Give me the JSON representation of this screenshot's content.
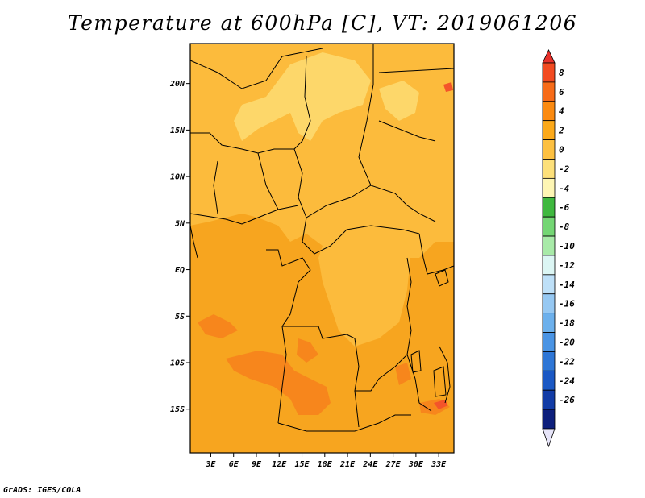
{
  "title": "Temperature at 600hPa [C], VT: 2019061206",
  "credit": "GrADS: IGES/COLA",
  "axes": {
    "lat_labels": [
      {
        "label": "20N",
        "value": 20
      },
      {
        "label": "15N",
        "value": 15
      },
      {
        "label": "10N",
        "value": 10
      },
      {
        "label": "5N",
        "value": 5
      },
      {
        "label": "EQ",
        "value": 0
      },
      {
        "label": "5S",
        "value": -5
      },
      {
        "label": "10S",
        "value": -10
      },
      {
        "label": "15S",
        "value": -15
      }
    ],
    "lon_labels": [
      {
        "label": "3E",
        "value": 3
      },
      {
        "label": "6E",
        "value": 6
      },
      {
        "label": "9E",
        "value": 9
      },
      {
        "label": "12E",
        "value": 12
      },
      {
        "label": "15E",
        "value": 15
      },
      {
        "label": "18E",
        "value": 18
      },
      {
        "label": "21E",
        "value": 21
      },
      {
        "label": "24E",
        "value": 24
      },
      {
        "label": "27E",
        "value": 27
      },
      {
        "label": "30E",
        "value": 30
      },
      {
        "label": "33E",
        "value": 33
      }
    ],
    "lon_range": [
      0.3,
      35.0
    ],
    "lat_range": [
      -19.7,
      24.3
    ]
  },
  "colorbar": {
    "levels": [
      "8",
      "6",
      "4",
      "2",
      "0",
      "-2",
      "-4",
      "-6",
      "-8",
      "-10",
      "-12",
      "-14",
      "-16",
      "-18",
      "-20",
      "-22",
      "-24",
      "-26"
    ],
    "colors": [
      "#e8302a",
      "#f24a20",
      "#f76b18",
      "#fb8a10",
      "#fca91a",
      "#fdc040",
      "#fde07a",
      "#fef6b4",
      "#3fb83f",
      "#74d674",
      "#a8eaa8",
      "#dcf6f4",
      "#bee0f8",
      "#96c8f2",
      "#6cb0ec",
      "#4a94e4",
      "#2e76d6",
      "#1a58c4",
      "#123ca6",
      "#0d1f7c",
      "#e6e4f8"
    ]
  },
  "field_colors": {
    "base": "#f7a51f",
    "warm_lt2": "#fcbb3c",
    "cool_lt0": "#fdd76a",
    "warm_4_6": "#f7861c",
    "warm_6_8": "#f4542a"
  }
}
